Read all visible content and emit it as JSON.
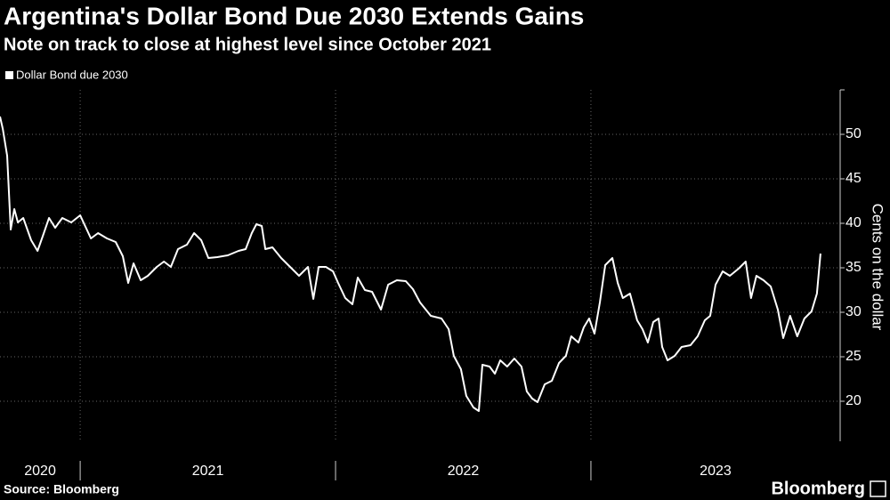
{
  "chart_data": {
    "type": "line",
    "title": "Argentina's Dollar Bond Due 2030 Extends Gains",
    "subtitle": "Note on track to close at highest level since October 2021",
    "y_label": "Cents on the dollar",
    "source": "Source: Bloomberg",
    "brand": "Bloomberg",
    "x": [
      2020.686,
      2020.697,
      2020.714,
      2020.728,
      2020.742,
      2020.756,
      2020.777,
      2020.808,
      2020.833,
      2020.854,
      2020.878,
      2020.902,
      2020.93,
      2020.965,
      2021.0,
      2021.021,
      2021.042,
      2021.07,
      2021.105,
      2021.139,
      2021.167,
      2021.188,
      2021.209,
      2021.237,
      2021.265,
      2021.3,
      2021.328,
      2021.355,
      2021.383,
      2021.418,
      2021.446,
      2021.474,
      2021.502,
      2021.537,
      2021.578,
      2021.62,
      2021.648,
      2021.672,
      2021.69,
      2021.711,
      2021.725,
      2021.753,
      2021.787,
      2021.822,
      2021.857,
      2021.892,
      2021.913,
      2021.934,
      2021.962,
      2021.99,
      2022.01,
      2022.038,
      2022.066,
      2022.087,
      2022.115,
      2022.143,
      2022.178,
      2022.206,
      2022.24,
      2022.275,
      2022.303,
      2022.331,
      2022.373,
      2022.415,
      2022.443,
      2022.463,
      2022.491,
      2022.512,
      2022.54,
      2022.561,
      2022.575,
      2022.603,
      2022.624,
      2022.645,
      2022.672,
      2022.7,
      2022.728,
      2022.749,
      2022.77,
      2022.791,
      2022.819,
      2022.847,
      2022.875,
      2022.902,
      2022.923,
      2022.951,
      2022.972,
      2022.993,
      2023.014,
      2023.035,
      2023.056,
      2023.084,
      2023.105,
      2023.125,
      2023.153,
      2023.181,
      2023.202,
      2023.223,
      2023.244,
      2023.265,
      2023.279,
      2023.3,
      2023.328,
      2023.355,
      2023.39,
      2023.418,
      2023.446,
      2023.467,
      2023.488,
      2023.516,
      2023.544,
      2023.578,
      2023.606,
      2023.627,
      2023.648,
      2023.676,
      2023.704,
      2023.732,
      2023.753,
      2023.78,
      2023.808,
      2023.836,
      2023.864,
      2023.885,
      2023.899
    ],
    "series": [
      {
        "name": "Dollar Bond due 2030",
        "color": "#ffffff",
        "values": [
          52,
          50.6,
          47.6,
          39.3,
          41.6,
          40.1,
          40.6,
          38.1,
          36.9,
          38.6,
          40.6,
          39.5,
          40.6,
          40.1,
          40.9,
          39.6,
          38.3,
          38.9,
          38.3,
          37.9,
          36.3,
          33.3,
          35.5,
          33.6,
          34.1,
          35.1,
          35.7,
          35.1,
          37.1,
          37.6,
          38.9,
          38.1,
          36.1,
          36.2,
          36.4,
          36.9,
          37.1,
          38.9,
          39.9,
          39.7,
          37.1,
          37.3,
          36.1,
          35.1,
          34.1,
          35.1,
          31.5,
          35.1,
          35.1,
          34.6,
          33.3,
          31.6,
          30.9,
          33.9,
          32.5,
          32.3,
          30.3,
          33.1,
          33.6,
          33.5,
          32.6,
          31.1,
          29.6,
          29.3,
          28.1,
          25.1,
          23.6,
          20.6,
          19.3,
          18.9,
          24.1,
          23.9,
          23.1,
          24.6,
          23.9,
          24.8,
          23.9,
          21.1,
          20.3,
          19.9,
          21.9,
          22.3,
          24.3,
          25.1,
          27.3,
          26.6,
          28.3,
          29.3,
          27.6,
          31.1,
          35.3,
          36.1,
          33.3,
          31.6,
          32.1,
          29.1,
          28.1,
          26.6,
          28.9,
          29.3,
          26.1,
          24.6,
          25.1,
          26.1,
          26.3,
          27.3,
          29.1,
          29.6,
          33.1,
          34.6,
          34.1,
          34.9,
          35.7,
          31.6,
          34.1,
          33.6,
          32.9,
          30.3,
          27.1,
          29.6,
          27.3,
          29.3,
          30.1,
          32.1,
          36.6
        ]
      }
    ],
    "xlim": [
      2020.686,
      2023.976
    ],
    "xticks": [
      2021,
      2022,
      2023
    ],
    "year_labels": [
      "2020",
      "2021",
      "2022",
      "2023"
    ],
    "ylim": [
      15.5,
      55
    ],
    "yticks": [
      20,
      25,
      30,
      35,
      40,
      45,
      50
    ],
    "grid": true,
    "background": "#000000"
  }
}
